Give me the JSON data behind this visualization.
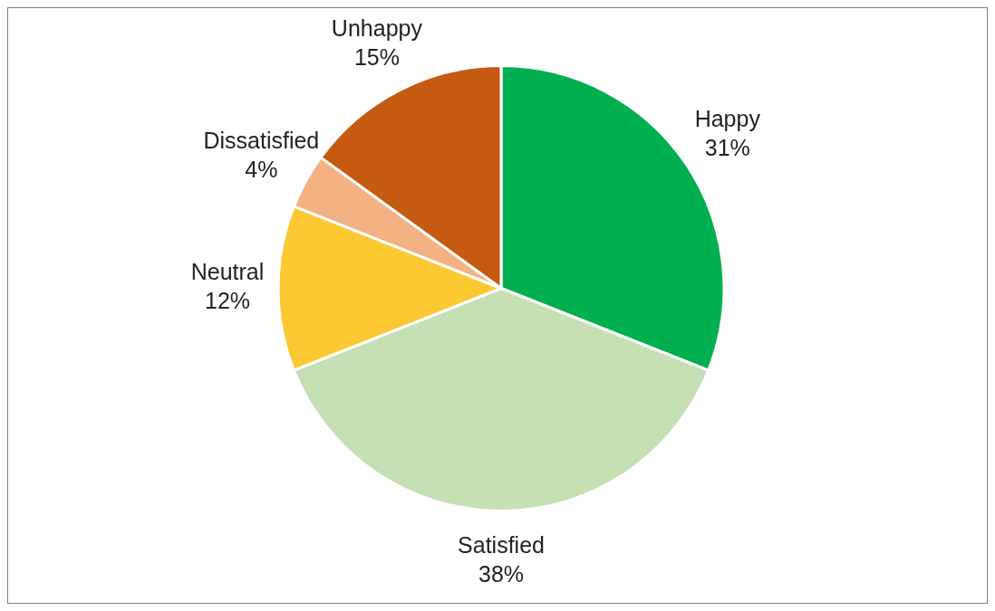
{
  "chart_data": {
    "type": "pie",
    "categories": [
      "Happy",
      "Satisfied",
      "Neutral",
      "Dissatisfied",
      "Unhappy"
    ],
    "values": [
      31,
      38,
      12,
      4,
      15
    ],
    "colors": [
      "#00b050",
      "#c5e0b4",
      "#fcc933",
      "#f4b183",
      "#c55a11"
    ],
    "value_labels": [
      "31%",
      "38%",
      "12%",
      "4%",
      "15%"
    ],
    "legend": false
  }
}
